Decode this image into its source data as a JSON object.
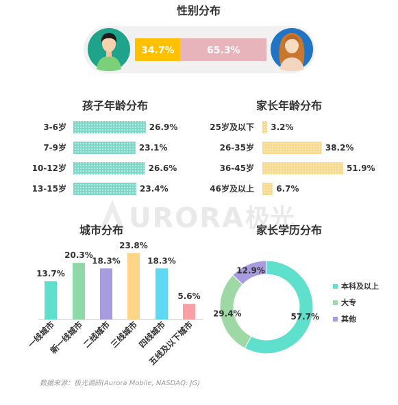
{
  "gender": {
    "title": "性别分布",
    "male_label": "34.7%",
    "female_label": "65.3%",
    "colors": {
      "male": "#FFC000",
      "female": "#E8B4BC",
      "male_circle": "#1FA38A",
      "female_circle": "#1F74C6"
    }
  },
  "watermark": {
    "latin": "URORA",
    "cn": "极光"
  },
  "source": "数据来源：极光调研(Aurora Mobile, NASDAQ: JG)",
  "chart_data": [
    {
      "type": "bar",
      "title": "性别分布",
      "categories": [
        "男",
        "女"
      ],
      "values": [
        34.7,
        65.3
      ],
      "orientation": "horizontal-stacked",
      "colors": [
        "#FFC000",
        "#E8B4BC"
      ]
    },
    {
      "type": "bar",
      "title": "孩子年龄分布",
      "categories": [
        "3-6岁",
        "7-9岁",
        "10-12岁",
        "13-15岁"
      ],
      "values": [
        26.9,
        23.1,
        26.6,
        23.4
      ],
      "value_labels": [
        "26.9%",
        "23.1%",
        "26.6%",
        "23.4%"
      ],
      "orientation": "horizontal",
      "color": "#7ED7C8",
      "dot_color": "#ffffff",
      "xlim": [
        0,
        30
      ]
    },
    {
      "type": "bar",
      "title": "家长年龄分布",
      "categories": [
        "25岁及以下",
        "26-35岁",
        "36-45岁",
        "46岁及以上"
      ],
      "values": [
        3.2,
        38.2,
        51.9,
        6.7
      ],
      "value_labels": [
        "3.2%",
        "38.2%",
        "51.9%",
        "6.7%"
      ],
      "orientation": "horizontal",
      "color": "#FBD98C",
      "dot_color": "#ffffff",
      "xlim": [
        0,
        55
      ]
    },
    {
      "type": "bar",
      "title": "城市分布",
      "categories": [
        "一线城市",
        "新一线城市",
        "二线城市",
        "三线城市",
        "四线城市",
        "五线及以下城市"
      ],
      "values": [
        13.7,
        20.3,
        18.3,
        23.8,
        18.3,
        5.6
      ],
      "value_labels": [
        "13.7%",
        "20.3%",
        "18.3%",
        "23.8%",
        "18.3%",
        "5.6%"
      ],
      "colors": [
        "#5EE0CC",
        "#8FD9A8",
        "#A99BE0",
        "#FDD68A",
        "#5FD8F2",
        "#F8A0A6"
      ],
      "ylim": [
        0,
        25
      ]
    },
    {
      "type": "pie",
      "title": "家长学历分布",
      "donut": true,
      "categories": [
        "本科及以上",
        "大专",
        "其他"
      ],
      "values": [
        57.7,
        29.4,
        12.9
      ],
      "value_labels": [
        "57.7%",
        "29.4%",
        "12.9%"
      ],
      "colors": [
        "#5EE0CC",
        "#9ED9A5",
        "#A99BE0"
      ],
      "legend": "right"
    }
  ]
}
